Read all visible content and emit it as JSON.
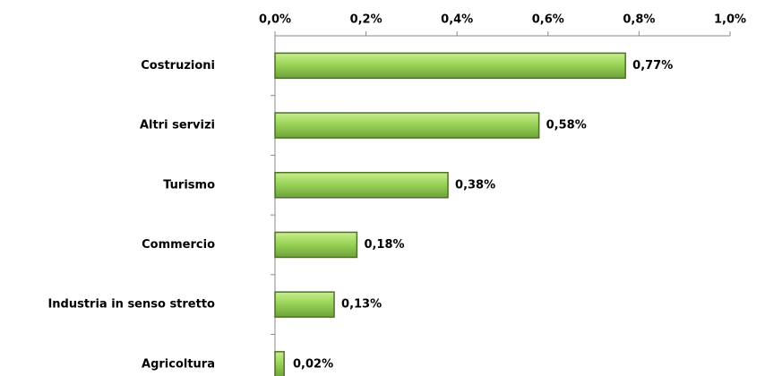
{
  "chart_data": {
    "type": "bar",
    "orientation": "horizontal",
    "categories": [
      "Costruzioni",
      "Altri servizi",
      "Turismo",
      "Commercio",
      "Industria in senso stretto",
      "Agricoltura"
    ],
    "values": [
      0.77,
      0.58,
      0.38,
      0.18,
      0.13,
      0.02
    ],
    "value_labels": [
      "0,77%",
      "0,58%",
      "0,38%",
      "0,18%",
      "0,13%",
      "0,02%"
    ],
    "color": "#92d050",
    "xlim": [
      0,
      1.0
    ],
    "xticks": [
      {
        "value": 0,
        "label": "0,0%"
      },
      {
        "value": 0.2,
        "label": "0,2%"
      },
      {
        "value": 0.4,
        "label": "0,4%"
      },
      {
        "value": 0.6,
        "label": "0,6%"
      },
      {
        "value": 0.8,
        "label": "0,8%"
      },
      {
        "value": 1.0,
        "label": "1,0%"
      }
    ],
    "grid": false
  }
}
